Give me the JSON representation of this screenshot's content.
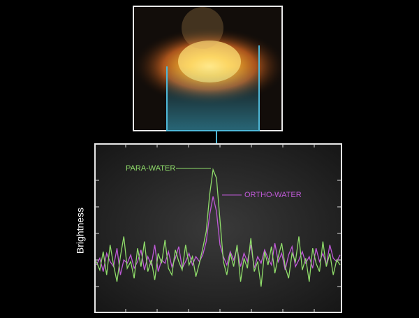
{
  "chart_data": {
    "type": "line",
    "y_label": "Brightness",
    "ylim": [
      0,
      100
    ],
    "annotations": [
      "PARA-WATER",
      "ORTHO-WATER"
    ],
    "series": [
      {
        "name": "PARA-WATER",
        "color": "#8fdc6a",
        "values": [
          30,
          25,
          36,
          22,
          40,
          28,
          18,
          33,
          45,
          26,
          30,
          20,
          38,
          27,
          42,
          24,
          31,
          19,
          35,
          29,
          43,
          26,
          22,
          37,
          30,
          25,
          40,
          28,
          33,
          21,
          29,
          38,
          48,
          70,
          85,
          80,
          55,
          30,
          22,
          35,
          27,
          40,
          18,
          32,
          26,
          44,
          24,
          30,
          15,
          36,
          28,
          39,
          23,
          33,
          41,
          27,
          20,
          35,
          30,
          45,
          25,
          32,
          18,
          38,
          29,
          24,
          42,
          27,
          35,
          22,
          31,
          28
        ]
      },
      {
        "name": "ORTHO-WATER",
        "color": "#c05ad8",
        "values": [
          28,
          32,
          24,
          35,
          30,
          27,
          38,
          22,
          31,
          29,
          34,
          26,
          30,
          37,
          25,
          33,
          28,
          40,
          24,
          31,
          29,
          36,
          27,
          32,
          39,
          26,
          30,
          35,
          28,
          33,
          30,
          34,
          42,
          58,
          69,
          60,
          40,
          33,
          28,
          36,
          31,
          38,
          27,
          35,
          30,
          40,
          26,
          33,
          29,
          37,
          32,
          28,
          41,
          30,
          35,
          25,
          34,
          39,
          27,
          31,
          36,
          29,
          33,
          26,
          38,
          30,
          35,
          28,
          40,
          32,
          30,
          34
        ]
      }
    ]
  }
}
